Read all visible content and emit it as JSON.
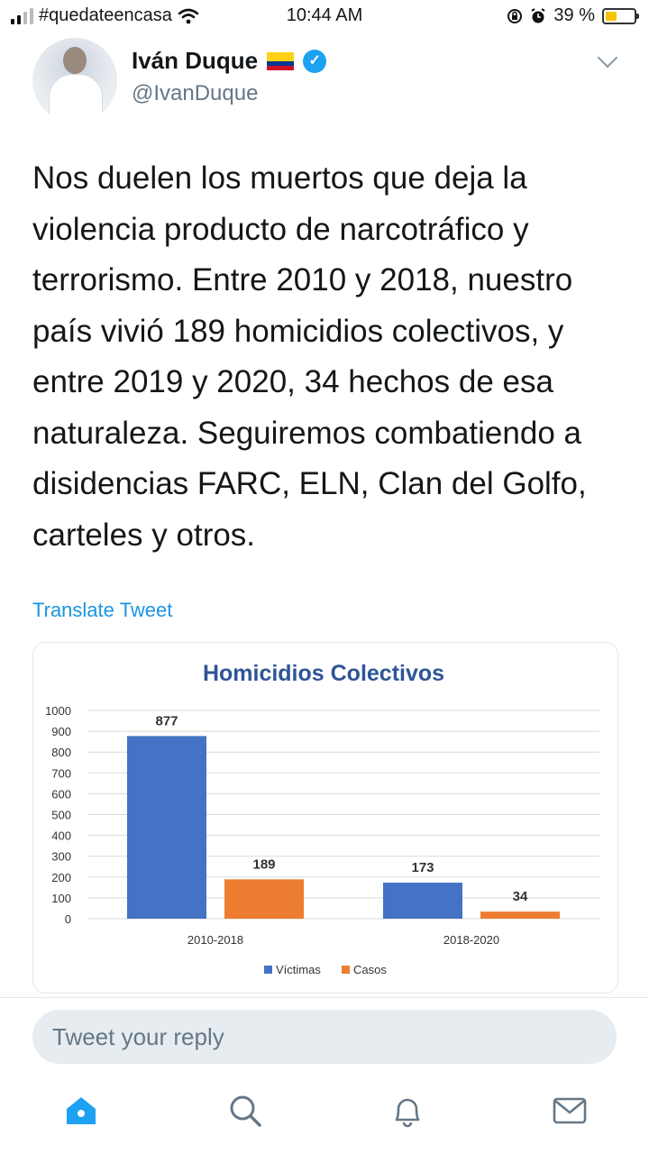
{
  "status_bar": {
    "carrier": "#quedateencasa",
    "time": "10:44 AM",
    "battery": "39 %",
    "battery_level": 0.39
  },
  "tweet": {
    "author_name": "Iván Duque",
    "handle": "@IvanDuque",
    "text": "Nos duelen los muertos que deja la violencia producto de narcotráfico y terrorismo. Entre 2010 y 2018, nuestro país vivió 189 homicidios colectivos, y entre 2019 y 2020, 34 hechos de esa naturaleza. Seguiremos combatiendo a disidencias FARC, ELN, Clan del Golfo, carteles y otros.",
    "translate_label": "Translate Tweet"
  },
  "reply": {
    "placeholder": "Tweet your reply"
  },
  "tabs": [
    {
      "icon": "home-icon"
    },
    {
      "icon": "search-icon"
    },
    {
      "icon": "bell-icon"
    },
    {
      "icon": "mail-icon"
    }
  ],
  "colors": {
    "twitter_blue": "#1da1f2",
    "series_victimas": "#4472c4",
    "series_casos": "#ed7d31",
    "chart_title": "#2f5597"
  },
  "chart_data": {
    "type": "bar",
    "title": "Homicidios Colectivos",
    "categories": [
      "2010-2018",
      "2018-2020"
    ],
    "series": [
      {
        "name": "Víctimas",
        "values": [
          877,
          173
        ]
      },
      {
        "name": "Casos",
        "values": [
          189,
          34
        ]
      }
    ],
    "ylim": [
      0,
      1000
    ],
    "yticks": [
      0,
      100,
      200,
      300,
      400,
      500,
      600,
      700,
      800,
      900,
      1000
    ],
    "legend": "bottom",
    "grid": true
  }
}
